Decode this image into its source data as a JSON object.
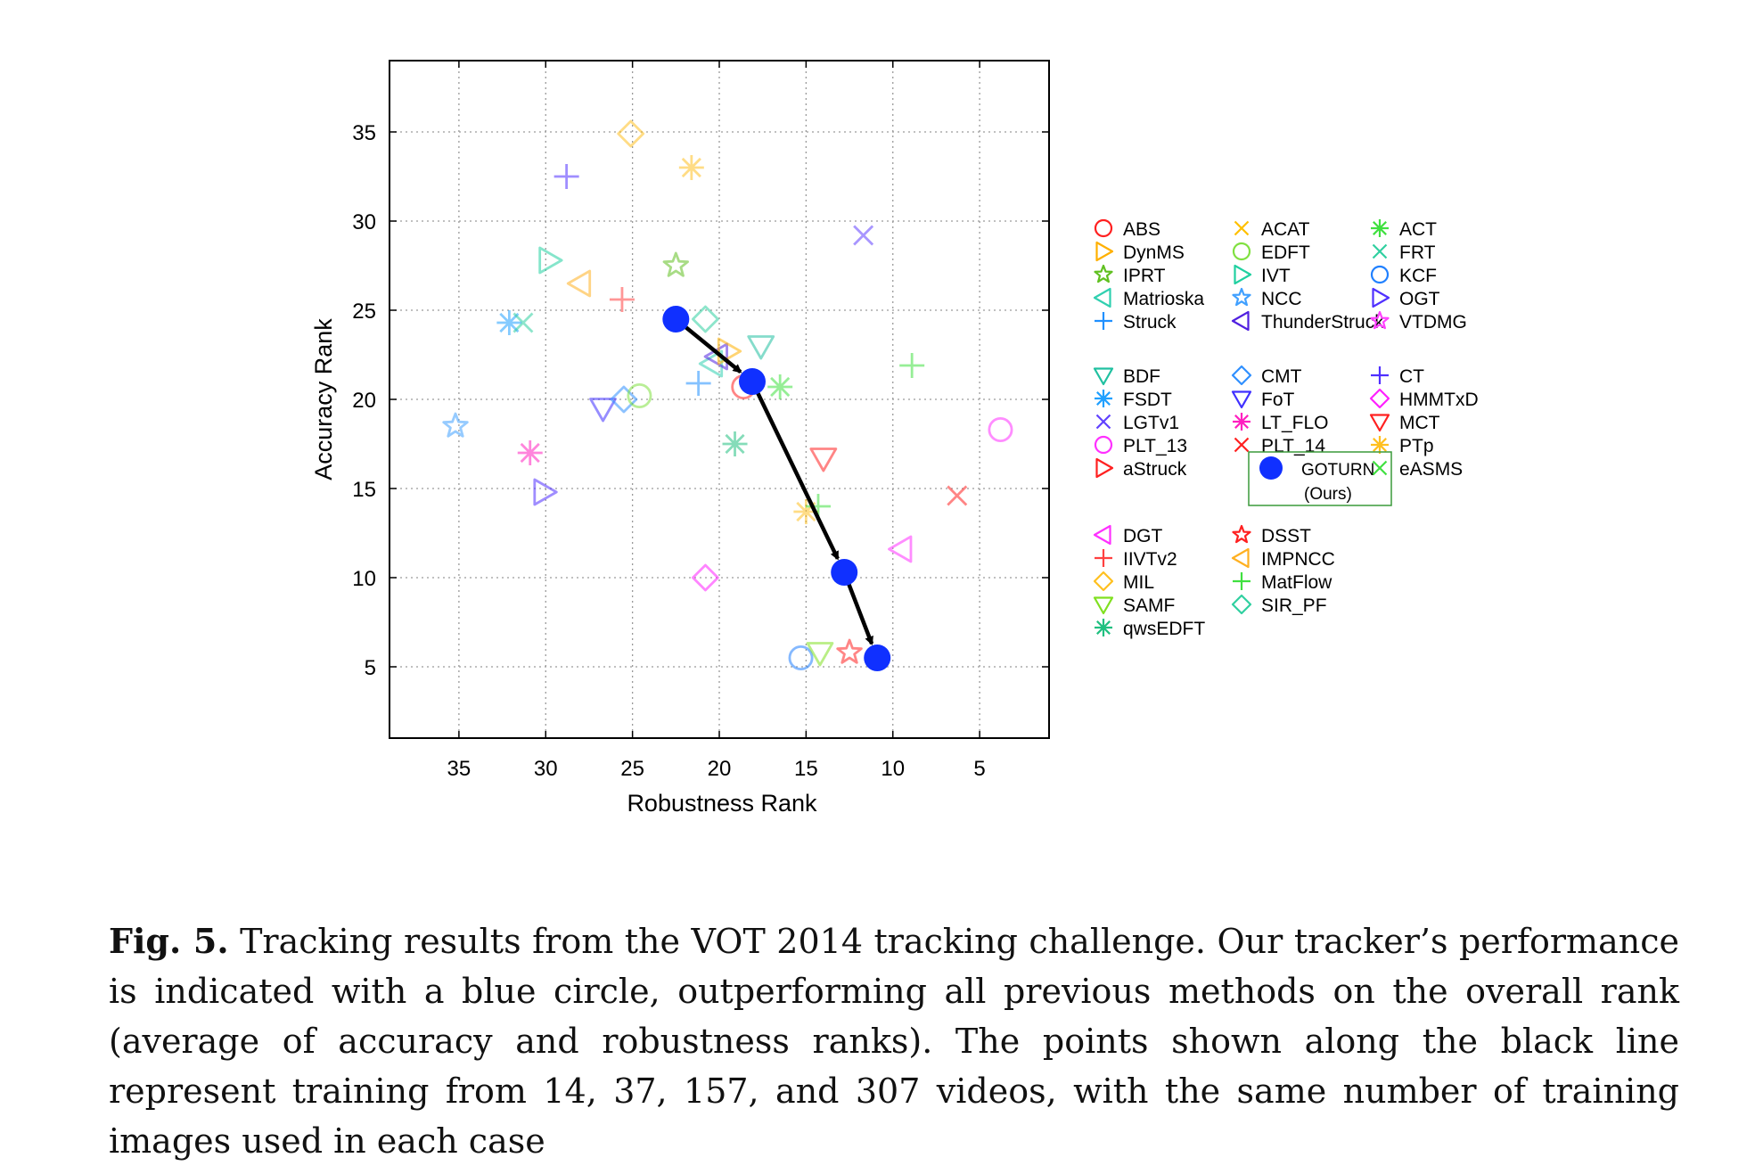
{
  "chart_data": {
    "type": "scatter",
    "xlabel": "Robustness Rank",
    "ylabel": "Accuracy Rank",
    "xlim": [
      39,
      1
    ],
    "ylim": [
      39,
      1
    ],
    "x_reversed": true,
    "y_reversed": true,
    "xticks": [
      35,
      30,
      25,
      20,
      15,
      10,
      5
    ],
    "yticks": [
      5,
      10,
      15,
      20,
      25,
      30,
      35
    ],
    "grid": true,
    "legend_position": "right",
    "legend_groups": [
      [
        [
          {
            "name": "ABS",
            "marker": "circle",
            "color": "#ff2020"
          },
          {
            "name": "ACAT",
            "marker": "x",
            "color": "#ffc000"
          },
          {
            "name": "ACT",
            "marker": "asterisk",
            "color": "#40e040"
          }
        ],
        [
          {
            "name": "DynMS",
            "marker": "tri-right",
            "color": "#ffb000"
          },
          {
            "name": "EDFT",
            "marker": "circle",
            "color": "#80e040"
          },
          {
            "name": "FRT",
            "marker": "x",
            "color": "#30d0a0"
          }
        ],
        [
          {
            "name": "IPRT",
            "marker": "star",
            "color": "#60c020"
          },
          {
            "name": "IVT",
            "marker": "tri-right",
            "color": "#20d0a0"
          },
          {
            "name": "KCF",
            "marker": "circle",
            "color": "#2080ff"
          }
        ],
        [
          {
            "name": "Matrioska",
            "marker": "tri-left",
            "color": "#30d0b0"
          },
          {
            "name": "NCC",
            "marker": "star",
            "color": "#40a0ff"
          },
          {
            "name": "OGT",
            "marker": "tri-right",
            "color": "#5030ff"
          }
        ],
        [
          {
            "name": "Struck",
            "marker": "plus",
            "color": "#2090ff"
          },
          {
            "name": "ThunderStruck",
            "marker": "tri-left",
            "color": "#5020e0"
          },
          {
            "name": "VTDMG",
            "marker": "star",
            "color": "#ff40ff"
          }
        ]
      ],
      [
        [
          {
            "name": "BDF",
            "marker": "tri-down",
            "color": "#20c0a0"
          },
          {
            "name": "CMT",
            "marker": "diamond",
            "color": "#3090ff"
          },
          {
            "name": "CT",
            "marker": "plus",
            "color": "#5030ff"
          }
        ],
        [
          {
            "name": "FSDT",
            "marker": "asterisk",
            "color": "#20a0ff"
          },
          {
            "name": "FoT",
            "marker": "tri-down",
            "color": "#4030ff"
          },
          {
            "name": "HMMTxD",
            "marker": "diamond",
            "color": "#ff20ff"
          }
        ],
        [
          {
            "name": "LGTv1",
            "marker": "x",
            "color": "#6040ff"
          },
          {
            "name": "LT_FLO",
            "marker": "asterisk",
            "color": "#ff20c0"
          },
          {
            "name": "MCT",
            "marker": "tri-down",
            "color": "#ff2020"
          }
        ],
        [
          {
            "name": "PLT_13",
            "marker": "circle",
            "color": "#ff30ff"
          },
          {
            "name": "PLT_14",
            "marker": "x",
            "color": "#ff2020"
          },
          {
            "name": "PTp",
            "marker": "asterisk",
            "color": "#ffc020"
          }
        ],
        [
          {
            "name": "aStruck",
            "marker": "tri-right",
            "color": "#ff2020"
          },
          {
            "name": "GOTURN",
            "note": "(Ours)",
            "marker": "dot",
            "color": "#1030ff"
          },
          {
            "name": "eASMS",
            "marker": "x",
            "color": "#40e040"
          }
        ]
      ],
      [
        [
          {
            "name": "DGT",
            "marker": "tri-left",
            "color": "#ff30ff"
          },
          {
            "name": "DSST",
            "marker": "star",
            "color": "#ff2020"
          }
        ],
        [
          {
            "name": "IIVTv2",
            "marker": "plus",
            "color": "#ff4040"
          },
          {
            "name": "IMPNCC",
            "marker": "tri-left",
            "color": "#ffb020"
          }
        ],
        [
          {
            "name": "MIL",
            "marker": "diamond",
            "color": "#ffc020"
          },
          {
            "name": "MatFlow",
            "marker": "plus",
            "color": "#40e040"
          }
        ],
        [
          {
            "name": "SAMF",
            "marker": "tri-down",
            "color": "#80e020"
          },
          {
            "name": "SIR_PF",
            "marker": "diamond",
            "color": "#30d0a0"
          }
        ],
        [
          {
            "name": "qwsEDFT",
            "marker": "asterisk",
            "color": "#20c080"
          }
        ]
      ]
    ],
    "points": [
      {
        "marker": "circle",
        "color": "#2080ff",
        "x": 15.3,
        "y": 5.5
      },
      {
        "marker": "tri-down",
        "color": "#80e020",
        "x": 14.2,
        "y": 5.8
      },
      {
        "marker": "star",
        "color": "#ff2020",
        "x": 12.5,
        "y": 5.8
      },
      {
        "marker": "diamond",
        "color": "#ff20ff",
        "x": 20.8,
        "y": 10.0
      },
      {
        "marker": "tri-left",
        "color": "#ff30ff",
        "x": 9.5,
        "y": 11.6
      },
      {
        "marker": "asterisk",
        "color": "#ffc020",
        "x": 15.0,
        "y": 13.7
      },
      {
        "marker": "plus",
        "color": "#40e040",
        "x": 14.3,
        "y": 14.0
      },
      {
        "marker": "x",
        "color": "#ff2020",
        "x": 6.3,
        "y": 14.6
      },
      {
        "marker": "tri-right",
        "color": "#5030ff",
        "x": 30.1,
        "y": 14.8
      },
      {
        "marker": "tri-down",
        "color": "#ff2020",
        "x": 14.0,
        "y": 16.7
      },
      {
        "marker": "asterisk",
        "color": "#ff20c0",
        "x": 30.9,
        "y": 17.0
      },
      {
        "marker": "asterisk",
        "color": "#20c080",
        "x": 19.1,
        "y": 17.5
      },
      {
        "marker": "circle",
        "color": "#ff30ff",
        "x": 3.8,
        "y": 18.3
      },
      {
        "marker": "star",
        "color": "#40a0ff",
        "x": 35.2,
        "y": 18.5
      },
      {
        "marker": "tri-down",
        "color": "#4030ff",
        "x": 26.7,
        "y": 19.5
      },
      {
        "marker": "diamond",
        "color": "#3090ff",
        "x": 25.5,
        "y": 20.0
      },
      {
        "marker": "circle",
        "color": "#80e040",
        "x": 24.6,
        "y": 20.2
      },
      {
        "marker": "asterisk",
        "color": "#40e040",
        "x": 16.5,
        "y": 20.7
      },
      {
        "marker": "circle",
        "color": "#ff2020",
        "x": 18.6,
        "y": 20.7
      },
      {
        "marker": "plus",
        "color": "#2090ff",
        "x": 21.2,
        "y": 20.9
      },
      {
        "marker": "plus",
        "color": "#40e040",
        "x": 8.9,
        "y": 21.9
      },
      {
        "marker": "tri-left",
        "color": "#30d0b0",
        "x": 20.4,
        "y": 22.0
      },
      {
        "marker": "tri-left",
        "color": "#5020e0",
        "x": 20.1,
        "y": 22.4
      },
      {
        "marker": "tri-right",
        "color": "#ffb000",
        "x": 19.5,
        "y": 22.7
      },
      {
        "marker": "tri-down",
        "color": "#20c0a0",
        "x": 17.6,
        "y": 23.0
      },
      {
        "marker": "asterisk",
        "color": "#20a0ff",
        "x": 32.1,
        "y": 24.3
      },
      {
        "marker": "x",
        "color": "#30d0a0",
        "x": 31.3,
        "y": 24.3
      },
      {
        "marker": "diamond",
        "color": "#30d0a0",
        "x": 20.8,
        "y": 24.5
      },
      {
        "marker": "plus",
        "color": "#ff4040",
        "x": 25.6,
        "y": 25.6
      },
      {
        "marker": "tri-left",
        "color": "#ffb020",
        "x": 28.0,
        "y": 26.5
      },
      {
        "marker": "star",
        "color": "#60c020",
        "x": 22.5,
        "y": 27.5
      },
      {
        "marker": "tri-right",
        "color": "#20d0a0",
        "x": 29.8,
        "y": 27.8
      },
      {
        "marker": "x",
        "color": "#6040ff",
        "x": 11.7,
        "y": 29.2
      },
      {
        "marker": "plus",
        "color": "#5030ff",
        "x": 28.8,
        "y": 32.5
      },
      {
        "marker": "asterisk",
        "color": "#ffc020",
        "x": 21.6,
        "y": 33.0
      },
      {
        "marker": "diamond",
        "color": "#ffc020",
        "x": 25.1,
        "y": 34.9
      }
    ],
    "goturn_points": [
      {
        "x": 22.5,
        "y": 24.5
      },
      {
        "x": 18.1,
        "y": 21.0
      },
      {
        "x": 12.8,
        "y": 10.3
      },
      {
        "x": 10.9,
        "y": 5.5
      }
    ]
  },
  "caption": {
    "label": "Fig. 5.",
    "text": " Tracking results from the VOT 2014 tracking challenge. Our tracker’s performance is indicated with a blue circle, outperforming all previous methods on the overall rank (average of accuracy and robustness ranks). The points shown along the black line represent training from 14, 37, 157, and 307 videos, with the same number of training images used in each case"
  }
}
